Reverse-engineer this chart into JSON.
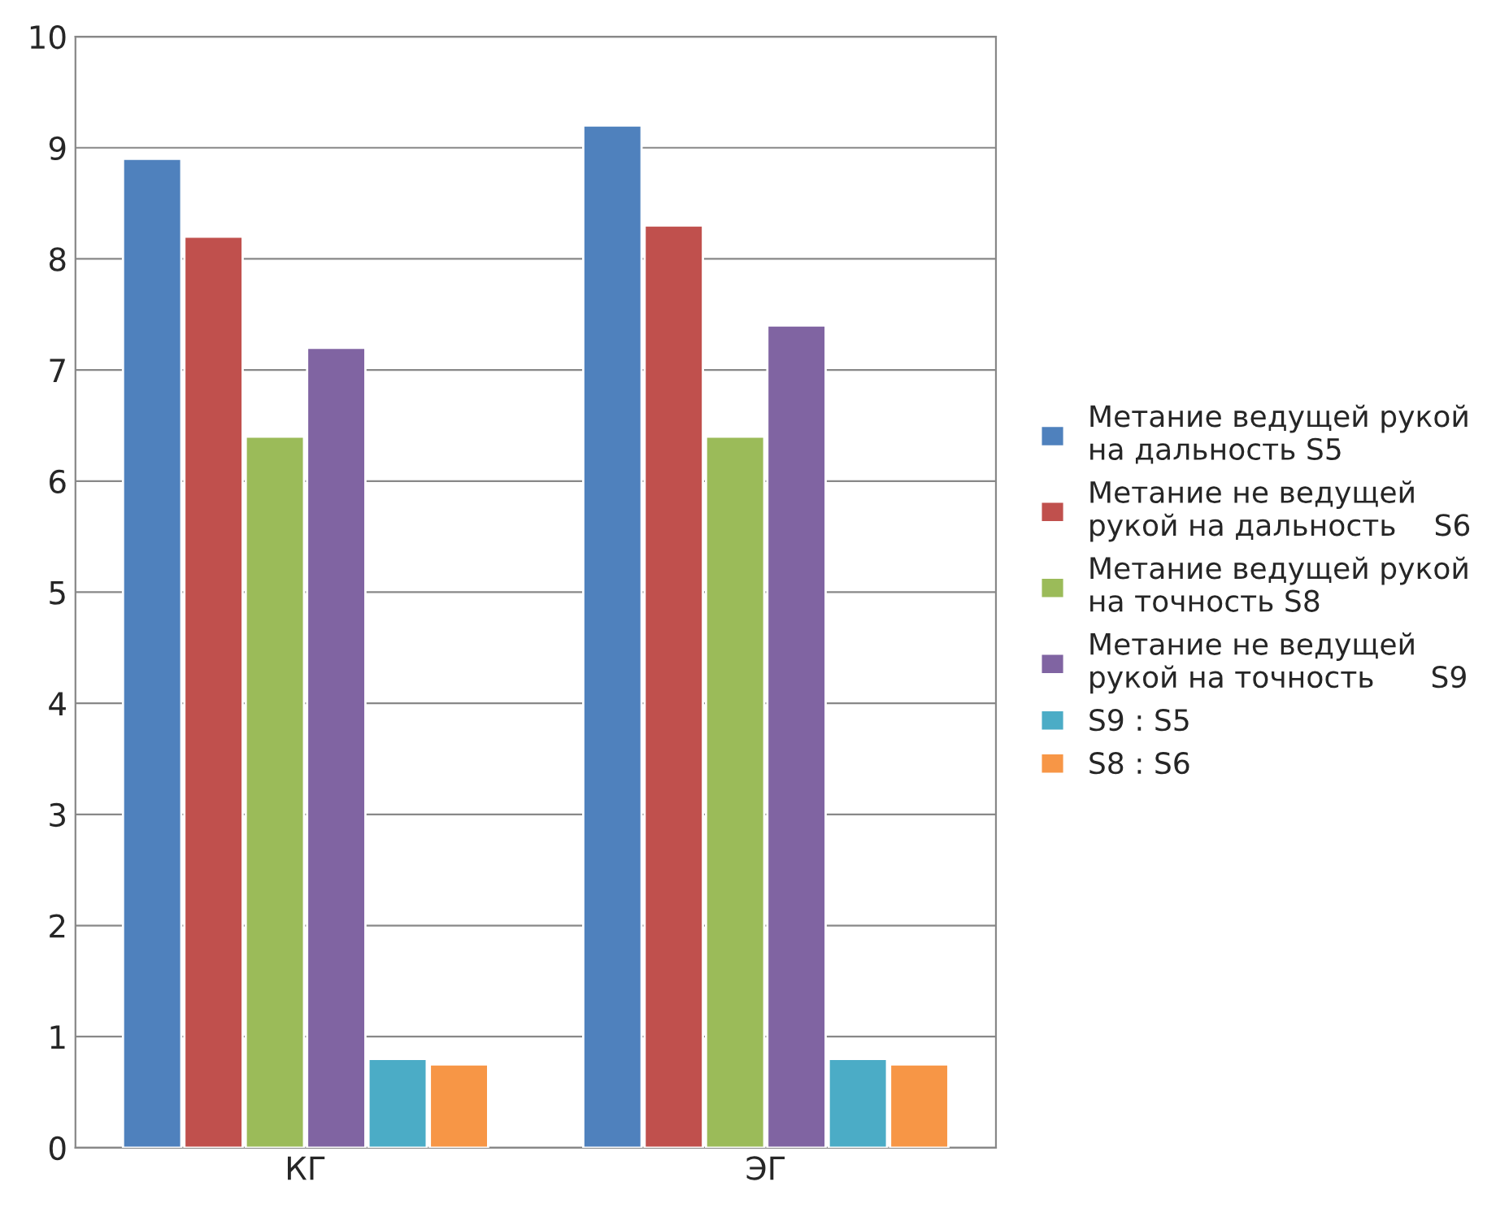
{
  "chart_data": {
    "type": "bar",
    "categories": [
      "КГ",
      "ЭГ"
    ],
    "series": [
      {
        "name": "Метание ведущей рукой\nна дальность S5",
        "color": "#4f81bd",
        "values": [
          8.9,
          9.2
        ]
      },
      {
        "name": "Метание не ведущей\nрукой на дальность    S6",
        "color": "#c0504d",
        "values": [
          8.2,
          8.3
        ]
      },
      {
        "name": "Метание ведущей рукой\nна точность S8",
        "color": "#9bbb59",
        "values": [
          6.4,
          6.4
        ]
      },
      {
        "name": "Метание не ведущей\nрукой на точность      S9",
        "color": "#8064a2",
        "values": [
          7.2,
          7.4
        ]
      },
      {
        "name": "S9 : S5",
        "color": "#4bacc6",
        "values": [
          0.8,
          0.8
        ]
      },
      {
        "name": "S8 : S6",
        "color": "#f79646",
        "values": [
          0.75,
          0.75
        ]
      }
    ],
    "ylim": [
      0,
      10
    ],
    "yticks": [
      0,
      1,
      2,
      3,
      4,
      5,
      6,
      7,
      8,
      9,
      10
    ],
    "grid": "y",
    "legend": "right"
  }
}
